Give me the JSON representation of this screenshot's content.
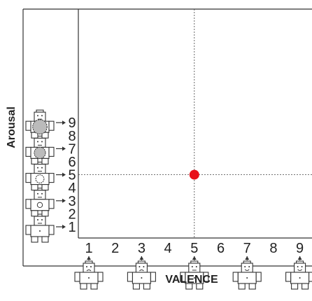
{
  "x_axis": {
    "title": "VALENCE",
    "ticks": [
      "1",
      "2",
      "3",
      "4",
      "5",
      "6",
      "7",
      "8",
      "9"
    ],
    "sam_figures": [
      {
        "value": "1",
        "name": "sam-valence-1"
      },
      {
        "value": "3",
        "name": "sam-valence-3"
      },
      {
        "value": "5",
        "name": "sam-valence-5"
      },
      {
        "value": "7",
        "name": "sam-valence-7"
      },
      {
        "value": "9",
        "name": "sam-valence-9"
      }
    ]
  },
  "y_axis": {
    "title": "Arousal",
    "ticks": [
      "1",
      "2",
      "3",
      "4",
      "5",
      "6",
      "7",
      "8",
      "9"
    ],
    "sam_figures": [
      {
        "value": "1",
        "name": "sam-arousal-1"
      },
      {
        "value": "3",
        "name": "sam-arousal-3"
      },
      {
        "value": "5",
        "name": "sam-arousal-5"
      },
      {
        "value": "7",
        "name": "sam-arousal-7"
      },
      {
        "value": "9",
        "name": "sam-arousal-9"
      }
    ]
  },
  "marker": {
    "valence": 5,
    "arousal": 5,
    "color": "#e8101a"
  },
  "crosshair": {
    "valence": 5,
    "arousal": 5
  }
}
